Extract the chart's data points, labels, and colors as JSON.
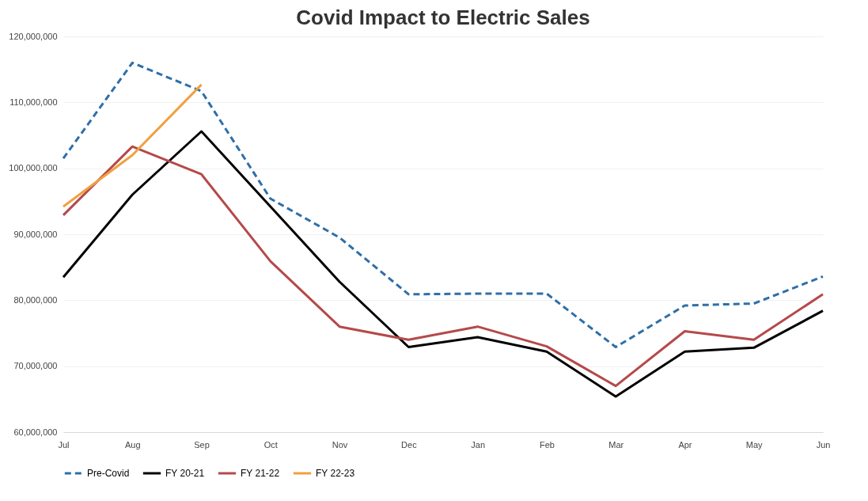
{
  "chart_data": {
    "type": "line",
    "title": "Covid Impact to Electric Sales",
    "categories": [
      "Jul",
      "Aug",
      "Sep",
      "Oct",
      "Nov",
      "Dec",
      "Jan",
      "Feb",
      "Mar",
      "Apr",
      "May",
      "Jun"
    ],
    "series": [
      {
        "name": "Pre-Covid",
        "color": "#2e6fa8",
        "line_style": "dashed",
        "values": [
          101500000,
          116000000,
          111700000,
          95400000,
          89500000,
          80900000,
          81000000,
          81000000,
          72900000,
          79200000,
          79500000,
          83600000
        ]
      },
      {
        "name": "FY 20-21",
        "color": "#000000",
        "line_style": "solid",
        "values": [
          83500000,
          96000000,
          105600000,
          94200000,
          82800000,
          72900000,
          74400000,
          72200000,
          65400000,
          72200000,
          72800000,
          78400000
        ]
      },
      {
        "name": "FY 21-22",
        "color": "#b5494a",
        "line_style": "solid",
        "values": [
          92900000,
          103300000,
          99100000,
          85900000,
          76000000,
          74000000,
          76000000,
          73000000,
          67000000,
          75300000,
          74000000,
          80900000
        ]
      },
      {
        "name": "FY 22-23",
        "color": "#f0a040",
        "line_style": "solid",
        "values": [
          94200000,
          102000000,
          112700000,
          null,
          null,
          null,
          null,
          null,
          null,
          null,
          null,
          null
        ]
      }
    ],
    "ylim": [
      60000000,
      120000000
    ],
    "yticks": [
      {
        "value": 60000000,
        "label": "60,000,000"
      },
      {
        "value": 70000000,
        "label": "70,000,000"
      },
      {
        "value": 80000000,
        "label": "80,000,000"
      },
      {
        "value": 90000000,
        "label": "90,000,000"
      },
      {
        "value": 100000000,
        "label": "100,000,000"
      },
      {
        "value": 110000000,
        "label": "110,000,000"
      },
      {
        "value": 120000000,
        "label": "120,000,000"
      }
    ],
    "grid": "y",
    "legend": "bottom"
  }
}
